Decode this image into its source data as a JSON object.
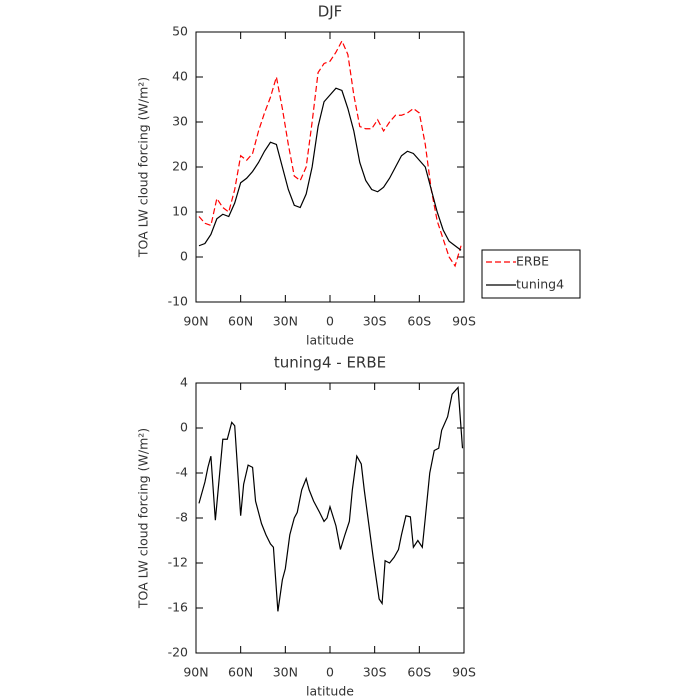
{
  "chart_data": [
    {
      "type": "line",
      "title": "DJF",
      "xlabel": "latitude",
      "ylabel": "TOA LW cloud forcing (W/m²)",
      "x": [
        88,
        84,
        80,
        76,
        72,
        68,
        64,
        60,
        56,
        52,
        48,
        44,
        40,
        36,
        32,
        28,
        24,
        20,
        16,
        12,
        8,
        4,
        0,
        -4,
        -8,
        -12,
        -16,
        -20,
        -24,
        -28,
        -32,
        -36,
        -40,
        -44,
        -48,
        -52,
        -56,
        -60,
        -64,
        -68,
        -72,
        -76,
        -80,
        -84,
        -88
      ],
      "series": [
        {
          "name": "ERBE",
          "color": "#ff0000",
          "linestyle": "dashed",
          "values": [
            9,
            7.5,
            7,
            13,
            11,
            10,
            15,
            22.5,
            21.5,
            23,
            28,
            32,
            35.5,
            40,
            33,
            25,
            18,
            17,
            20,
            30,
            41,
            43,
            43.5,
            45.5,
            48,
            45,
            36,
            29,
            28.5,
            28.5,
            30.5,
            28,
            30,
            31.5,
            31.5,
            32,
            33,
            32,
            25,
            15,
            8,
            4,
            0,
            -2,
            2.5
          ]
        },
        {
          "name": "tuning4",
          "color": "#000000",
          "linestyle": "solid",
          "values": [
            2.5,
            3,
            5,
            8.5,
            9.5,
            9,
            12,
            16.5,
            17.5,
            19,
            21,
            23.5,
            25.5,
            25,
            20,
            15,
            11.5,
            11,
            14,
            20,
            29,
            34.5,
            36,
            37.5,
            37,
            33,
            28,
            21,
            17,
            15,
            14.5,
            15.5,
            17.5,
            20,
            22.5,
            23.5,
            23,
            21.5,
            20,
            15,
            10,
            6,
            3.5,
            2.5,
            1.5
          ]
        }
      ],
      "xlim": [
        90,
        -90
      ],
      "ylim": [
        -10,
        50
      ],
      "xticks": [
        {
          "value": 90,
          "label": "90N"
        },
        {
          "value": 60,
          "label": "60N"
        },
        {
          "value": 30,
          "label": "30N"
        },
        0,
        {
          "value": -30,
          "label": "30S"
        },
        {
          "value": -60,
          "label": "60S"
        },
        {
          "value": -90,
          "label": "90S"
        }
      ],
      "yticks": [
        -10,
        0,
        10,
        20,
        30,
        40,
        50
      ],
      "legend": "right"
    },
    {
      "type": "line",
      "title": "tuning4 - ERBE",
      "xlabel": "latitude",
      "ylabel": "TOA LW cloud forcing (W/m²)",
      "x": [
        88,
        84,
        82,
        80,
        77,
        72,
        69,
        66,
        64,
        60,
        58,
        55,
        52,
        50,
        46,
        43,
        40,
        38,
        35,
        32,
        30,
        27,
        24,
        22,
        19,
        16,
        14,
        11,
        7,
        4,
        2,
        0,
        -4,
        -7,
        -10,
        -13,
        -15,
        -18,
        -21,
        -23,
        -26,
        -29,
        -33,
        -35,
        -37,
        -40,
        -43,
        -46,
        -48,
        -51,
        -54,
        -56,
        -59,
        -62,
        -64,
        -67,
        -70,
        -73,
        -75,
        -79,
        -82,
        -86,
        -89
      ],
      "series": [
        {
          "color": "#000000",
          "linestyle": "solid",
          "values": [
            -6.7,
            -4.8,
            -3.5,
            -2.5,
            -8.2,
            -1,
            -1,
            0.5,
            0.2,
            -7.8,
            -5,
            -3.3,
            -3.5,
            -6.5,
            -8.5,
            -9.5,
            -10.3,
            -10.6,
            -16.3,
            -13.5,
            -12.5,
            -9.5,
            -8,
            -7.5,
            -5.5,
            -4.5,
            -5.5,
            -6.5,
            -7.5,
            -8.3,
            -8,
            -7,
            -8.7,
            -10.8,
            -9.5,
            -8.3,
            -5.5,
            -2.5,
            -3.2,
            -5.5,
            -8.5,
            -11.5,
            -15.2,
            -15.6,
            -11.8,
            -12,
            -11.5,
            -10.8,
            -9.5,
            -7.8,
            -7.9,
            -10.6,
            -10,
            -10.6,
            -8,
            -4,
            -2,
            -1.8,
            -0.2,
            1,
            3,
            3.6,
            -1.8
          ]
        }
      ],
      "xlim": [
        90,
        -90
      ],
      "ylim": [
        -20,
        4
      ],
      "xticks": [
        {
          "value": 90,
          "label": "90N"
        },
        {
          "value": 60,
          "label": "60N"
        },
        {
          "value": 30,
          "label": "30N"
        },
        0,
        {
          "value": -30,
          "label": "30S"
        },
        {
          "value": -60,
          "label": "60S"
        },
        {
          "value": -90,
          "label": "90S"
        }
      ],
      "yticks": [
        -20,
        -16,
        -12,
        -8,
        -4,
        0,
        4
      ]
    }
  ]
}
